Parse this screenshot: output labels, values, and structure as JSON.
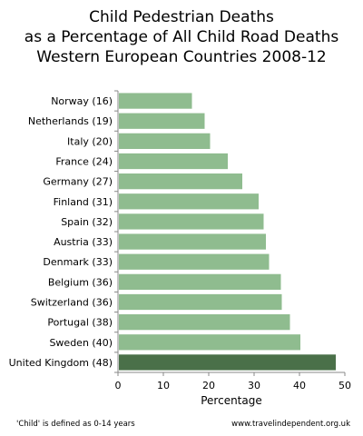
{
  "chart_data": {
    "type": "bar",
    "orientation": "horizontal",
    "title_lines": [
      "Child Pedestrian Deaths",
      "as a Percentage of All Child Road Deaths",
      "Western European Countries 2008-12"
    ],
    "categories": [
      "Norway (16)",
      "Netherlands (19)",
      "Italy (20)",
      "France (24)",
      "Germany (27)",
      "Finland (31)",
      "Spain (32)",
      "Austria (33)",
      "Denmark (33)",
      "Belgium (36)",
      "Switzerland (36)",
      "Portugal (38)",
      "Sweden (40)",
      "United Kingdom (48)"
    ],
    "values": [
      16.3,
      19.1,
      20.3,
      24.2,
      27.4,
      31.0,
      32.1,
      32.6,
      33.3,
      35.9,
      36.1,
      37.9,
      40.2,
      48.0
    ],
    "xlabel": "Percentage",
    "ylabel": "",
    "xlim": [
      0,
      50
    ],
    "xticks": [
      "0",
      "10",
      "20",
      "30",
      "40",
      "50"
    ],
    "grid": false,
    "legend": "none",
    "colors": {
      "bar": "#8fbc8f",
      "highlight": "#4a7049",
      "axis": "#888888"
    },
    "highlight_category": "United Kingdom (48)"
  },
  "footnotes": {
    "left": "'Child' is defined as 0-14 years",
    "right": "www.travelindependent.org.uk"
  }
}
